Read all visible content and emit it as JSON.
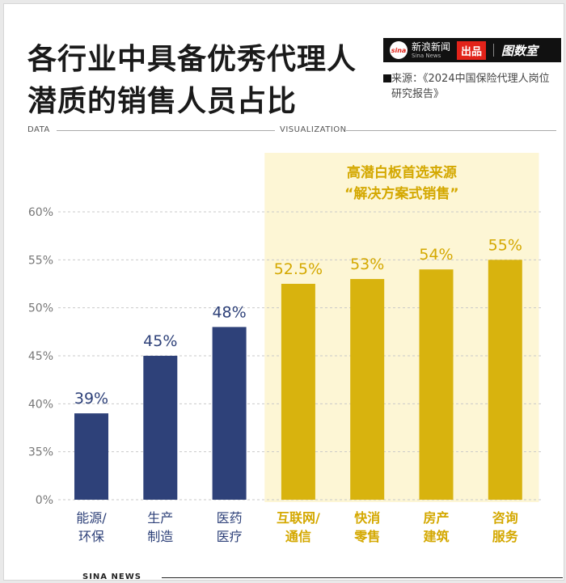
{
  "header": {
    "title": "各行业中具备优秀代理人潜质的销售人员占比",
    "brand_cn": "新浪新闻",
    "brand_en": "Sina News",
    "brand_badge": "出品",
    "brand_secondary": "图数室",
    "brand_logo": "sina",
    "source": "来源：《2024中国保险代理人岗位研究报告》"
  },
  "section": {
    "left_label": "DATA",
    "right_label": "VISUALIZATION"
  },
  "footer": {
    "label": "SINA NEWS"
  },
  "chart_data": {
    "type": "bar",
    "categories": [
      "能源/环保",
      "生产制造",
      "医药医疗",
      "互联网/通信",
      "快消零售",
      "房产建筑",
      "咨询服务"
    ],
    "category_lines": [
      [
        "能源/",
        "环保"
      ],
      [
        "生产",
        "制造"
      ],
      [
        "医药",
        "医疗"
      ],
      [
        "互联网/",
        "通信"
      ],
      [
        "快消",
        "零售"
      ],
      [
        "房产",
        "建筑"
      ],
      [
        "咨询",
        "服务"
      ]
    ],
    "values": [
      39,
      45,
      48,
      52.5,
      53,
      54,
      55
    ],
    "data_labels": [
      "39%",
      "45%",
      "48%",
      "52.5%",
      "53%",
      "54%",
      "55%"
    ],
    "highlight_indices": [
      3,
      4,
      5,
      6
    ],
    "highlight_lines": [
      "高潜白板首选来源",
      "“解决方案式销售”"
    ],
    "yticks": [
      "0%",
      "35%",
      "40%",
      "45%",
      "50%",
      "55%",
      "60%"
    ],
    "ylim": [
      0,
      60
    ],
    "grid": true,
    "colors": {
      "base": "#2e4179",
      "highlight": "#d8b30e",
      "highlight_bg": "#fdf6d5",
      "highlight_text": "#d4a800"
    }
  }
}
